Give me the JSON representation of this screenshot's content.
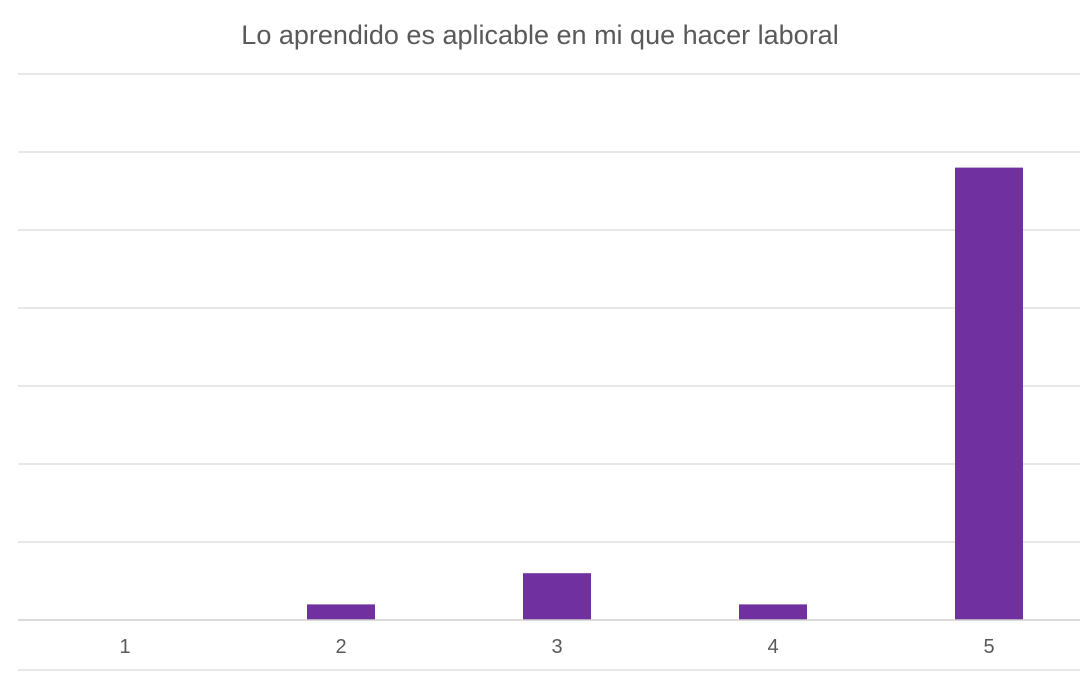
{
  "chart_data": {
    "type": "bar",
    "title": "Lo aprendido es aplicable en mi que hacer laboral",
    "categories": [
      "1",
      "2",
      "3",
      "4",
      "5"
    ],
    "values": [
      0,
      2,
      6,
      2,
      58
    ],
    "ylim": [
      0,
      70
    ],
    "ytick_step": 10,
    "grid": true,
    "xlabel": "",
    "ylabel": "",
    "bar_color": "#7030a0",
    "grid_color": "#d9d9d9",
    "text_color": "#595959"
  }
}
